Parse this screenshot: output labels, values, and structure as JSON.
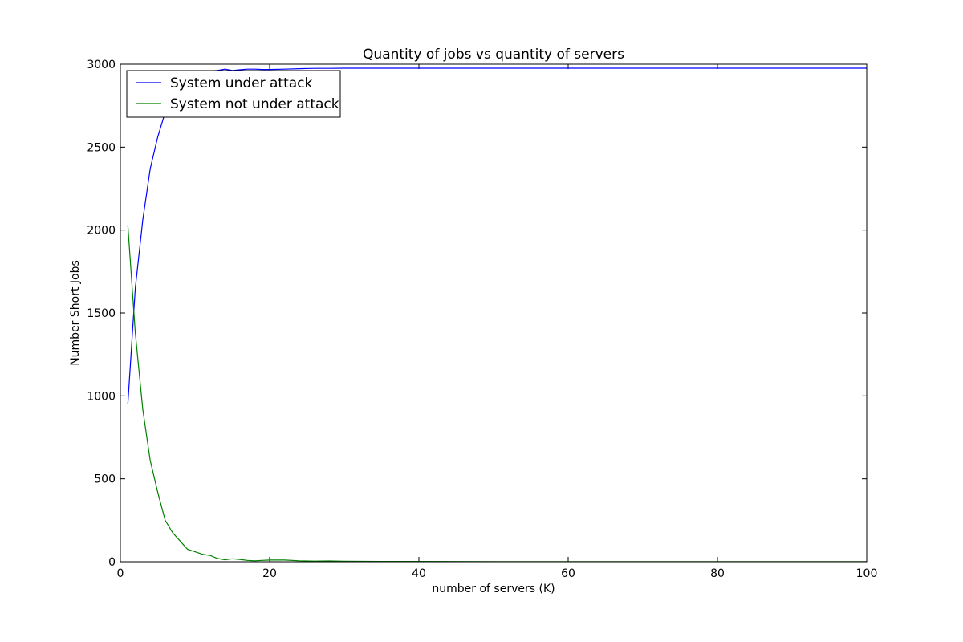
{
  "chart_data": {
    "type": "line",
    "title": "Quantity of jobs vs quantity of servers",
    "xlabel": "number of servers (K)",
    "ylabel": "Number Short Jobs",
    "xlim": [
      0,
      100
    ],
    "ylim": [
      0,
      3000
    ],
    "xticks": [
      "0",
      "20",
      "40",
      "60",
      "80",
      "100"
    ],
    "yticks": [
      "0",
      "500",
      "1000",
      "1500",
      "2000",
      "2500",
      "3000"
    ],
    "grid": false,
    "legend_position": "top-left",
    "series": [
      {
        "name": "System under attack",
        "color": "#0000ff",
        "x": [
          1,
          2,
          3,
          4,
          5,
          6,
          7,
          8,
          9,
          10,
          11,
          12,
          13,
          14,
          15,
          16,
          17,
          18,
          19,
          20,
          22,
          24,
          26,
          28,
          30,
          35,
          40,
          50,
          60,
          70,
          80,
          90,
          100
        ],
        "y": [
          950,
          1650,
          2060,
          2370,
          2560,
          2710,
          2810,
          2880,
          2920,
          2945,
          2955,
          2960,
          2962,
          2970,
          2962,
          2966,
          2970,
          2970,
          2968,
          2968,
          2970,
          2973,
          2975,
          2975,
          2976,
          2976,
          2976,
          2976,
          2976,
          2976,
          2976,
          2976,
          2976
        ]
      },
      {
        "name": "System not under attack",
        "color": "#008000",
        "x": [
          1,
          2,
          3,
          4,
          5,
          6,
          7,
          8,
          9,
          10,
          11,
          12,
          13,
          14,
          15,
          16,
          17,
          18,
          19,
          20,
          22,
          24,
          26,
          28,
          30,
          35,
          40,
          50,
          60,
          70,
          80,
          90,
          100
        ],
        "y": [
          2030,
          1380,
          920,
          610,
          420,
          250,
          175,
          125,
          75,
          60,
          45,
          38,
          20,
          12,
          18,
          14,
          8,
          6,
          8,
          10,
          10,
          6,
          4,
          5,
          3,
          2,
          2,
          1,
          1,
          1,
          1,
          1,
          1
        ]
      }
    ]
  }
}
